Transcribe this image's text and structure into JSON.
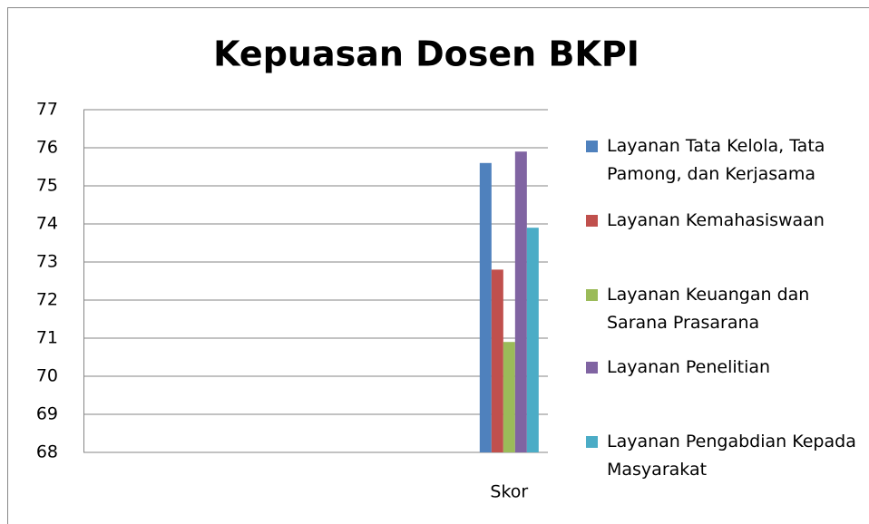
{
  "chart_data": {
    "type": "bar",
    "title": "Kepuasan Dosen BKPI",
    "categories": [
      null,
      null,
      null,
      null,
      null,
      "Skor"
    ],
    "series": [
      {
        "name": "Layanan Tata Kelola, Tata Pamong, dan Kerjasama",
        "color": "#4f81bd",
        "values": [
          null,
          null,
          null,
          null,
          null,
          75.6
        ]
      },
      {
        "name": "Layanan Kemahasiswaan",
        "color": "#c0504d",
        "values": [
          null,
          null,
          null,
          null,
          null,
          72.8
        ]
      },
      {
        "name": "Layanan Keuangan dan Sarana Prasarana",
        "color": "#9bbb59",
        "values": [
          null,
          null,
          null,
          null,
          null,
          70.9
        ]
      },
      {
        "name": "Layanan Penelitian",
        "color": "#8064a2",
        "values": [
          null,
          null,
          null,
          null,
          null,
          75.9
        ]
      },
      {
        "name": "Layanan Pengabdian Kepada Masyarakat",
        "color": "#4bacc6",
        "values": [
          null,
          null,
          null,
          null,
          null,
          73.9
        ]
      }
    ],
    "ylim": [
      68,
      77
    ],
    "yticks": [
      68,
      69,
      70,
      71,
      72,
      73,
      74,
      75,
      76,
      77
    ],
    "grid": true,
    "legend": "right"
  }
}
